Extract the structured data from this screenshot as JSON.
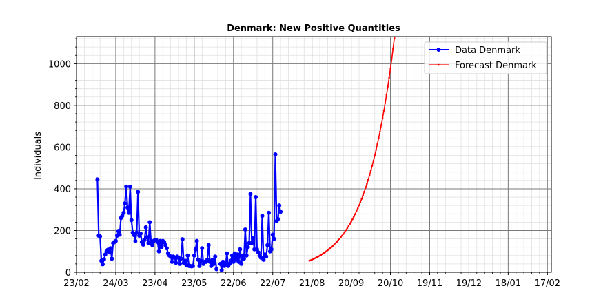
{
  "chart_data": {
    "type": "line",
    "title": "Denmark: New Positive Quantities",
    "xlabel": "",
    "ylabel": "Individuals",
    "x_type": "date",
    "xlim": [
      "2020-02-23",
      "2021-02-20"
    ],
    "ylim": [
      0,
      1130
    ],
    "x_ticks": [
      {
        "date": "2020-02-23",
        "label": "23/02"
      },
      {
        "date": "2020-03-24",
        "label": "24/03"
      },
      {
        "date": "2020-04-23",
        "label": "23/04"
      },
      {
        "date": "2020-05-23",
        "label": "23/05"
      },
      {
        "date": "2020-06-22",
        "label": "22/06"
      },
      {
        "date": "2020-07-22",
        "label": "22/07"
      },
      {
        "date": "2020-08-21",
        "label": "21/08"
      },
      {
        "date": "2020-09-20",
        "label": "20/09"
      },
      {
        "date": "2020-10-20",
        "label": "20/10"
      },
      {
        "date": "2020-11-19",
        "label": "19/11"
      },
      {
        "date": "2020-12-19",
        "label": "19/12"
      },
      {
        "date": "2021-01-18",
        "label": "18/01"
      },
      {
        "date": "2021-02-17",
        "label": "17/02"
      }
    ],
    "y_ticks": [
      0,
      200,
      400,
      600,
      800,
      1000
    ],
    "grid": true,
    "legend_position": "top-right",
    "series": [
      {
        "name": "Data Denmark",
        "color": "#0000ff",
        "marker": "circle",
        "start_date": "2020-03-10",
        "values": [
          445,
          175,
          172,
          55,
          38,
          62,
          85,
          100,
          108,
          95,
          115,
          65,
          140,
          145,
          150,
          175,
          198,
          180,
          260,
          270,
          285,
          330,
          410,
          310,
          285,
          410,
          250,
          190,
          178,
          150,
          190,
          385,
          175,
          185,
          145,
          132,
          155,
          215,
          168,
          140,
          240,
          140,
          130,
          150,
          155,
          155,
          145,
          100,
          150,
          120,
          150,
          145,
          130,
          115,
          90,
          80,
          75,
          50,
          75,
          70,
          45,
          75,
          70,
          40,
          65,
          158,
          45,
          55,
          35,
          80,
          30,
          30,
          28,
          30,
          80,
          110,
          150,
          60,
          30,
          55,
          115,
          40,
          50,
          50,
          60,
          130,
          50,
          30,
          60,
          40,
          75,
          15,
          null,
          null,
          40,
          10,
          50,
          30,
          35,
          90,
          30,
          40,
          55,
          80,
          50,
          90,
          60,
          85,
          50,
          110,
          40,
          80,
          65,
          205,
          80,
          120,
          140,
          375,
          140,
          165,
          110,
          360,
          110,
          95,
          80,
          70,
          270,
          60,
          85,
          75,
          130,
          285,
          100,
          110,
          180,
          160,
          565,
          245,
          255,
          320,
          290
        ]
      },
      {
        "name": "Forecast Denmark",
        "color": "#ff0000",
        "marker": "dot",
        "start_date": "2020-08-19",
        "end_date": "2020-10-25",
        "base_value": 55,
        "daily_growth": 1.0475
      }
    ]
  }
}
